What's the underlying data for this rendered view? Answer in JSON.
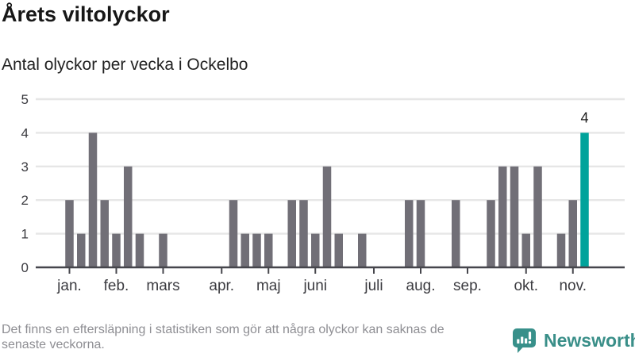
{
  "header": {
    "title": "Årets viltolyckor",
    "subtitle": "Antal olyckor per vecka i Ockelbo"
  },
  "chart_data": {
    "type": "bar",
    "title": "Årets viltolyckor",
    "subtitle": "Antal olyckor per vecka i Ockelbo",
    "x_unit": "vecka",
    "values": [
      2,
      1,
      4,
      2,
      1,
      3,
      1,
      0,
      1,
      0,
      0,
      0,
      0,
      0,
      2,
      1,
      1,
      1,
      0,
      2,
      2,
      1,
      3,
      1,
      0,
      1,
      0,
      0,
      0,
      2,
      2,
      0,
      0,
      2,
      0,
      0,
      2,
      3,
      3,
      1,
      3,
      0,
      1,
      2,
      4
    ],
    "month_ticks": [
      {
        "label": "jan.",
        "week_index": 0
      },
      {
        "label": "feb.",
        "week_index": 4
      },
      {
        "label": "mars",
        "week_index": 8
      },
      {
        "label": "apr.",
        "week_index": 13
      },
      {
        "label": "maj",
        "week_index": 17
      },
      {
        "label": "juni",
        "week_index": 21
      },
      {
        "label": "juli",
        "week_index": 26
      },
      {
        "label": "aug.",
        "week_index": 30
      },
      {
        "label": "sep.",
        "week_index": 34
      },
      {
        "label": "okt.",
        "week_index": 39
      },
      {
        "label": "nov.",
        "week_index": 43
      }
    ],
    "yticks": [
      0,
      1,
      2,
      3,
      4,
      5
    ],
    "ylim": [
      0,
      5
    ],
    "grid": true,
    "legend": "none",
    "highlight_index": 44,
    "highlight_value_label": "4",
    "bar_color": "#716f77",
    "highlight_color": "#00a39b",
    "grid_color": "#e6e6e6",
    "axis_color": "#46464c",
    "axis_text_color": "#3b3b40"
  },
  "footer": {
    "disclaimer": "Det finns en eftersläpning i statistiken som gör att några olyckor kan saknas de senaste veckorna.",
    "lines": [
      "Det finns en eftersläpning i statistiken som gör att några olyckor kan saknas de",
      "senaste veckorna."
    ],
    "brand": "Newsworthy"
  }
}
